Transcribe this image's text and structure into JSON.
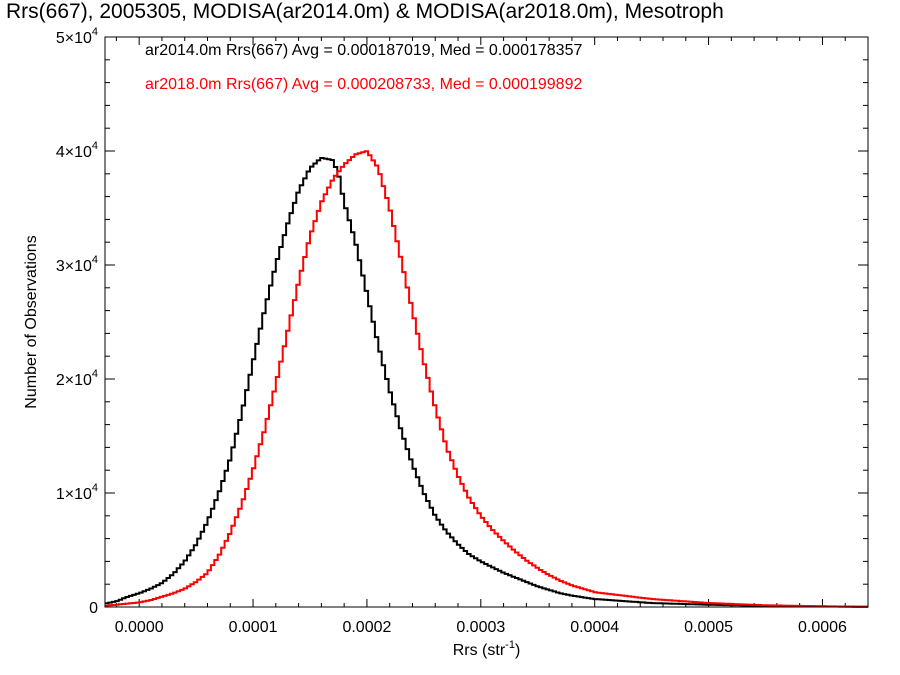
{
  "chart_data": {
    "type": "line",
    "title": "Rrs(667), 2005305, MODISA(ar2014.0m) & MODISA(ar2018.0m), Mesotroph",
    "xlabel": "Rrs (str",
    "xlabel_sup": "-1",
    "xlabel_close": ")",
    "ylabel": "Number of Observations",
    "xlim": [
      -3e-05,
      0.00064
    ],
    "ylim": [
      0,
      50000
    ],
    "x_ticks": [
      0.0,
      0.0001,
      0.0002,
      0.0003,
      0.0004,
      0.0005,
      0.0006
    ],
    "x_tick_labels": [
      "0.0000",
      "0.0001",
      "0.0002",
      "0.0003",
      "0.0004",
      "0.0005",
      "0.0006"
    ],
    "y_ticks": [
      0,
      10000,
      20000,
      30000,
      40000,
      50000
    ],
    "y_tick_labels": [
      {
        "base": "0",
        "exp": ""
      },
      {
        "base": "1×10",
        "exp": "4"
      },
      {
        "base": "2×10",
        "exp": "4"
      },
      {
        "base": "3×10",
        "exp": "4"
      },
      {
        "base": "4×10",
        "exp": "4"
      },
      {
        "base": "5×10",
        "exp": "4"
      }
    ],
    "grid": false,
    "annotations": [
      "ar2014.0m Rrs(667) Avg = 0.000187019, Med = 0.000178357",
      "ar2018.0m Rrs(667) Avg = 0.000208733, Med = 0.000199892"
    ],
    "series": [
      {
        "color": "#000000",
        "x": [
          -3e-05,
          -2e-05,
          -1e-05,
          0.0,
          1e-05,
          2e-05,
          3e-05,
          4e-05,
          5e-05,
          6e-05,
          7e-05,
          8e-05,
          9e-05,
          0.0001,
          0.00011,
          0.00012,
          0.00013,
          0.00014,
          0.00015,
          0.00016,
          0.00017,
          0.000175,
          0.00018,
          0.00019,
          0.0002,
          0.00021,
          0.00022,
          0.00023,
          0.00024,
          0.00025,
          0.00026,
          0.00027,
          0.00028,
          0.00029,
          0.0003,
          0.00031,
          0.00032,
          0.00033,
          0.00034,
          0.00035,
          0.00036,
          0.00037,
          0.00038,
          0.0004,
          0.00045,
          0.0005,
          0.00055,
          0.0006,
          0.00064
        ],
        "y": [
          300,
          500,
          900,
          1200,
          1600,
          2100,
          2900,
          4000,
          5500,
          7500,
          10000,
          13000,
          17000,
          21500,
          26000,
          30000,
          33500,
          36500,
          38500,
          39400,
          39200,
          38000,
          35500,
          32000,
          27500,
          23000,
          19000,
          15500,
          12500,
          10000,
          8000,
          6600,
          5500,
          4600,
          4000,
          3500,
          3000,
          2600,
          2200,
          1800,
          1500,
          1200,
          1000,
          700,
          350,
          200,
          100,
          50,
          20
        ]
      },
      {
        "color": "#ff0000",
        "x": [
          -3e-05,
          -2e-05,
          -1e-05,
          0.0,
          1e-05,
          2e-05,
          3e-05,
          4e-05,
          5e-05,
          6e-05,
          7e-05,
          8e-05,
          9e-05,
          0.0001,
          0.00011,
          0.00012,
          0.00013,
          0.00014,
          0.00015,
          0.00016,
          0.00017,
          0.00018,
          0.00019,
          0.0002,
          0.00021,
          0.00022,
          0.00023,
          0.00024,
          0.00025,
          0.00026,
          0.00027,
          0.00028,
          0.00029,
          0.0003,
          0.00031,
          0.00032,
          0.00033,
          0.00034,
          0.00035,
          0.00036,
          0.00037,
          0.00038,
          0.00039,
          0.0004,
          0.00045,
          0.0005,
          0.00055,
          0.0006,
          0.00064
        ],
        "y": [
          100,
          200,
          300,
          400,
          600,
          900,
          1200,
          1600,
          2200,
          3000,
          4500,
          6500,
          9000,
          12000,
          15500,
          19500,
          24000,
          28500,
          32500,
          35500,
          37500,
          38800,
          39700,
          40000,
          38500,
          35000,
          30500,
          26000,
          21500,
          17500,
          14000,
          11500,
          9500,
          8000,
          6800,
          5800,
          4900,
          4100,
          3400,
          2800,
          2300,
          1900,
          1600,
          1300,
          700,
          350,
          150,
          60,
          20
        ]
      }
    ]
  }
}
